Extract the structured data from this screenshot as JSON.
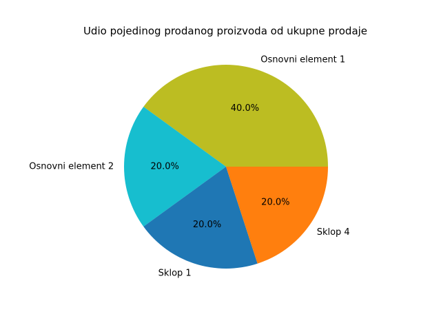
{
  "chart_data": {
    "type": "pie",
    "title": "Udio pojedinog prodanog proizvoda od ukupne prodaje",
    "slices": [
      {
        "label": "Osnovni element 1",
        "value": 40.0,
        "pct_label": "40.0%",
        "color": "#bcbd22"
      },
      {
        "label": "Osnovni element 2",
        "value": 20.0,
        "pct_label": "20.0%",
        "color": "#17becf"
      },
      {
        "label": "Sklop 1",
        "value": 20.0,
        "pct_label": "20.0%",
        "color": "#1f77b4"
      },
      {
        "label": "Sklop 4",
        "value": 20.0,
        "pct_label": "20.0%",
        "color": "#ff7f0e"
      }
    ]
  }
}
